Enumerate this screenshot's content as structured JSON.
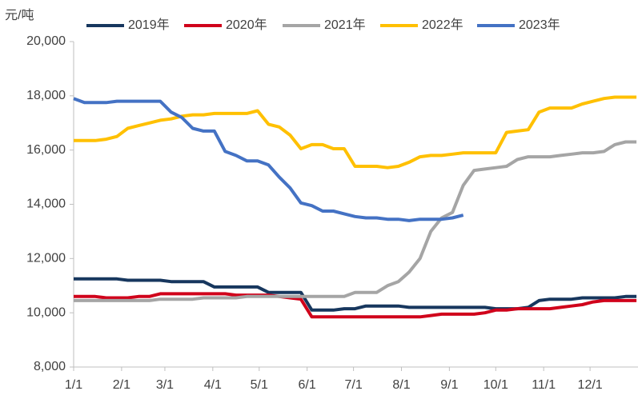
{
  "chart_data": {
    "type": "line",
    "y_label": "元/吨",
    "x": [
      0,
      7,
      14,
      21,
      28,
      35,
      42,
      49,
      56,
      63,
      70,
      77,
      84,
      91,
      98,
      105,
      112,
      119,
      126,
      133,
      140,
      147,
      154,
      161,
      168,
      175,
      182,
      189,
      196,
      203,
      210,
      217,
      224,
      231,
      238,
      245,
      252,
      259,
      266,
      273,
      280,
      287,
      294,
      301,
      308,
      315,
      322,
      329,
      336,
      343,
      350,
      357,
      364
    ],
    "xlim": [
      0,
      365
    ],
    "xticks": [
      {
        "value": 0,
        "label": "1/1"
      },
      {
        "value": 31,
        "label": "2/1"
      },
      {
        "value": 59,
        "label": "3/1"
      },
      {
        "value": 90,
        "label": "4/1"
      },
      {
        "value": 120,
        "label": "5/1"
      },
      {
        "value": 151,
        "label": "6/1"
      },
      {
        "value": 181,
        "label": "7/1"
      },
      {
        "value": 212,
        "label": "8/1"
      },
      {
        "value": 243,
        "label": "9/1"
      },
      {
        "value": 273,
        "label": "10/1"
      },
      {
        "value": 304,
        "label": "11/1"
      },
      {
        "value": 334,
        "label": "12/1"
      }
    ],
    "ylim": [
      8000,
      20000
    ],
    "yticks": [
      {
        "value": 8000,
        "label": "8,000"
      },
      {
        "value": 10000,
        "label": "10,000"
      },
      {
        "value": 12000,
        "label": "12,000"
      },
      {
        "value": 14000,
        "label": "14,000"
      },
      {
        "value": 16000,
        "label": "16,000"
      },
      {
        "value": 18000,
        "label": "18,000"
      },
      {
        "value": 20000,
        "label": "20,000"
      }
    ],
    "grid": false,
    "legend": "top",
    "series": [
      {
        "name": "2019年",
        "color": "#17375e",
        "values": [
          11250,
          11250,
          11250,
          11250,
          11250,
          11200,
          11200,
          11200,
          11200,
          11150,
          11150,
          11150,
          11150,
          10950,
          10950,
          10950,
          10950,
          10950,
          10750,
          10750,
          10750,
          10750,
          10100,
          10100,
          10100,
          10150,
          10150,
          10250,
          10250,
          10250,
          10250,
          10200,
          10200,
          10200,
          10200,
          10200,
          10200,
          10200,
          10200,
          10150,
          10150,
          10150,
          10200,
          10450,
          10500,
          10500,
          10500,
          10550,
          10550,
          10550,
          10550,
          10600,
          10600
        ]
      },
      {
        "name": "2020年",
        "color": "#d0021b",
        "values": [
          10600,
          10600,
          10600,
          10550,
          10550,
          10550,
          10600,
          10600,
          10700,
          10700,
          10700,
          10700,
          10700,
          10700,
          10700,
          10650,
          10650,
          10650,
          10650,
          10600,
          10550,
          10500,
          9850,
          9850,
          9850,
          9850,
          9850,
          9850,
          9850,
          9850,
          9850,
          9850,
          9850,
          9900,
          9950,
          9950,
          9950,
          9950,
          10000,
          10100,
          10100,
          10150,
          10150,
          10150,
          10150,
          10200,
          10250,
          10300,
          10400,
          10450,
          10450,
          10450,
          10450
        ]
      },
      {
        "name": "2021年",
        "color": "#a5a5a5",
        "values": [
          10450,
          10450,
          10450,
          10450,
          10450,
          10450,
          10450,
          10450,
          10500,
          10500,
          10500,
          10500,
          10550,
          10550,
          10550,
          10550,
          10600,
          10600,
          10600,
          10600,
          10600,
          10600,
          10600,
          10600,
          10600,
          10600,
          10750,
          10750,
          10750,
          11000,
          11150,
          11500,
          12000,
          13000,
          13500,
          13700,
          14700,
          15250,
          15300,
          15350,
          15400,
          15650,
          15750,
          15750,
          15750,
          15800,
          15850,
          15900,
          15900,
          15950,
          16200,
          16300,
          16300
        ]
      },
      {
        "name": "2022年",
        "color": "#ffc000",
        "values": [
          16350,
          16350,
          16350,
          16400,
          16500,
          16800,
          16900,
          17000,
          17100,
          17150,
          17250,
          17300,
          17300,
          17350,
          17350,
          17350,
          17350,
          17450,
          16950,
          16850,
          16550,
          16050,
          16200,
          16200,
          16050,
          16050,
          15400,
          15400,
          15400,
          15350,
          15400,
          15550,
          15750,
          15800,
          15800,
          15850,
          15900,
          15900,
          15900,
          15900,
          16650,
          16700,
          16750,
          17400,
          17550,
          17550,
          17550,
          17700,
          17800,
          17900,
          17950,
          17950,
          17950
        ]
      },
      {
        "name": "2023年",
        "color": "#4472c4",
        "values": [
          17900,
          17750,
          17750,
          17750,
          17800,
          17800,
          17800,
          17800,
          17800,
          17400,
          17200,
          16800,
          16700,
          16700,
          15950,
          15800,
          15600,
          15600,
          15450,
          15000,
          14600,
          14050,
          13950,
          13750,
          13750,
          13650,
          13550,
          13500,
          13500,
          13450,
          13450,
          13400,
          13450,
          13450,
          13450,
          13500,
          13600,
          null,
          null,
          null,
          null,
          null,
          null,
          null,
          null,
          null,
          null,
          null,
          null,
          null,
          null,
          null,
          null
        ]
      }
    ]
  }
}
